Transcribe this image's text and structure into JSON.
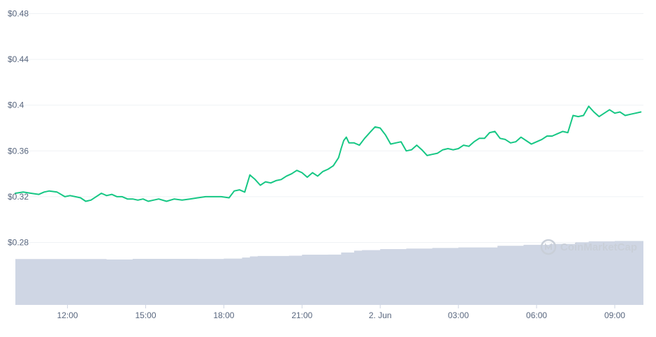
{
  "chart_data": {
    "type": "line",
    "title": "",
    "xlabel": "",
    "ylabel": "",
    "y_tick_labels": [
      "$0.28",
      "$0.32",
      "$0.36",
      "$0.4",
      "$0.44",
      "$0.48"
    ],
    "y_ticks": [
      0.28,
      0.32,
      0.36,
      0.4,
      0.44,
      0.48
    ],
    "ylim": [
      0.258,
      0.489
    ],
    "x_tick_labels": [
      "12:00",
      "15:00",
      "18:00",
      "21:00",
      "2. Jun",
      "03:00",
      "06:00",
      "09:00"
    ],
    "x_ticks": [
      12,
      15,
      18,
      21,
      24,
      27,
      30,
      33
    ],
    "xlim": [
      10.0,
      34.1
    ],
    "grid": true,
    "legend": "none",
    "line_color": "#16c784",
    "volume_color": "#cfd6e4",
    "series": [
      {
        "values_type": "price",
        "x": [
          10.0,
          10.3,
          10.6,
          10.9,
          11.1,
          11.3,
          11.6,
          11.9,
          12.1,
          12.3,
          12.5,
          12.7,
          12.9,
          13.1,
          13.3,
          13.5,
          13.7,
          13.9,
          14.1,
          14.3,
          14.5,
          14.7,
          14.9,
          15.1,
          15.3,
          15.5,
          15.8,
          16.1,
          16.4,
          16.7,
          17.0,
          17.3,
          17.6,
          17.9,
          18.2,
          18.4,
          18.6,
          18.8,
          19.0,
          19.2,
          19.4,
          19.6,
          19.8,
          20.0,
          20.2,
          20.4,
          20.6,
          20.8,
          21.0,
          21.2,
          21.4,
          21.6,
          21.8,
          22.0,
          22.2,
          22.4,
          22.5,
          22.6,
          22.7,
          22.8,
          23.0,
          23.2,
          23.4,
          23.6,
          23.8,
          24.0,
          24.2,
          24.4,
          24.6,
          24.8,
          25.0,
          25.2,
          25.4,
          25.6,
          25.8,
          26.0,
          26.2,
          26.4,
          26.6,
          26.8,
          27.0,
          27.2,
          27.4,
          27.6,
          27.8,
          28.0,
          28.2,
          28.4,
          28.6,
          28.8,
          29.0,
          29.2,
          29.4,
          29.6,
          29.8,
          30.0,
          30.2,
          30.4,
          30.6,
          30.8,
          31.0,
          31.2,
          31.4,
          31.6,
          31.8,
          32.0,
          32.2,
          32.4,
          32.6,
          32.8,
          33.0,
          33.2,
          33.4,
          33.6,
          33.8,
          34.0
        ],
        "values": [
          0.323,
          0.324,
          0.323,
          0.322,
          0.324,
          0.325,
          0.324,
          0.32,
          0.321,
          0.32,
          0.319,
          0.316,
          0.317,
          0.32,
          0.323,
          0.321,
          0.322,
          0.32,
          0.32,
          0.318,
          0.318,
          0.317,
          0.318,
          0.316,
          0.317,
          0.318,
          0.316,
          0.318,
          0.317,
          0.318,
          0.319,
          0.32,
          0.32,
          0.32,
          0.319,
          0.325,
          0.326,
          0.324,
          0.339,
          0.335,
          0.33,
          0.333,
          0.332,
          0.334,
          0.335,
          0.338,
          0.34,
          0.343,
          0.341,
          0.337,
          0.341,
          0.338,
          0.342,
          0.344,
          0.347,
          0.354,
          0.362,
          0.369,
          0.372,
          0.367,
          0.367,
          0.365,
          0.371,
          0.376,
          0.381,
          0.38,
          0.374,
          0.366,
          0.367,
          0.368,
          0.36,
          0.361,
          0.365,
          0.361,
          0.356,
          0.357,
          0.358,
          0.361,
          0.362,
          0.361,
          0.362,
          0.365,
          0.364,
          0.368,
          0.371,
          0.371,
          0.376,
          0.377,
          0.371,
          0.37,
          0.367,
          0.368,
          0.372,
          0.369,
          0.366,
          0.368,
          0.37,
          0.373,
          0.373,
          0.375,
          0.377,
          0.376,
          0.391,
          0.39,
          0.391,
          0.399,
          0.394,
          0.39,
          0.393,
          0.396,
          0.393,
          0.394,
          0.391,
          0.392,
          0.393,
          0.394
        ]
      }
    ],
    "volume": {
      "x": [
        10.0,
        13.5,
        14.5,
        17.0,
        18.0,
        18.7,
        19.0,
        19.3,
        20.5,
        21.0,
        22.0,
        22.5,
        23.0,
        23.3,
        24.0,
        25.0,
        26.0,
        27.0,
        28.5,
        29.5,
        30.5,
        31.5,
        32.0,
        33.0,
        34.1
      ],
      "values": [
        0.2655,
        0.2651,
        0.2657,
        0.2656,
        0.2659,
        0.2668,
        0.2678,
        0.2682,
        0.2684,
        0.2693,
        0.2694,
        0.2712,
        0.2728,
        0.2733,
        0.2742,
        0.2747,
        0.2752,
        0.2757,
        0.2771,
        0.2779,
        0.2787,
        0.2802,
        0.281,
        0.2813,
        0.282
      ]
    },
    "watermark": "CoinMarketCap"
  }
}
